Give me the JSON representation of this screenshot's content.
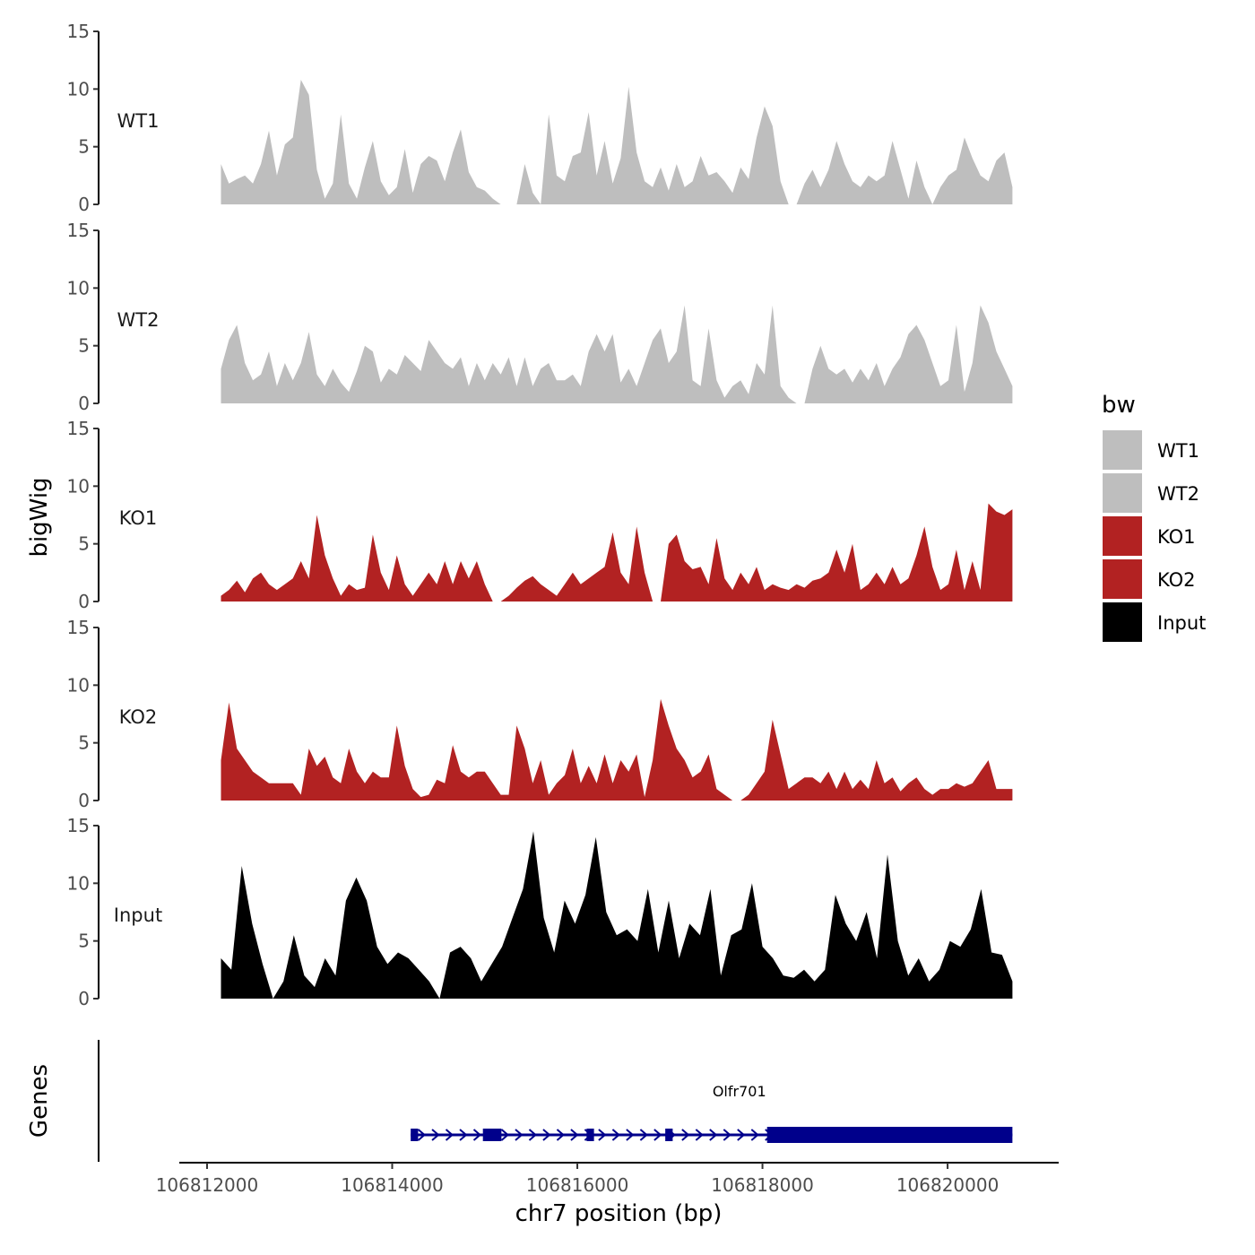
{
  "chart_data": {
    "type": "area",
    "x_axis": {
      "label": "chr7 position (bp)",
      "range": [
        106811700,
        106821200
      ],
      "ticks": [
        106812000,
        106814000,
        106816000,
        106818000,
        106820000
      ],
      "tick_labels": [
        "106812000",
        "106814000",
        "106816000",
        "106818000",
        "106820000"
      ]
    },
    "y_axis": {
      "label": "bigWig",
      "range": [
        0,
        15
      ],
      "ticks": [
        0,
        5,
        10,
        15
      ],
      "tick_labels": [
        "0",
        "5",
        "10",
        "15"
      ]
    },
    "x_span": [
      106812150,
      106820700
    ],
    "tracks": [
      {
        "name": "WT1",
        "color": "#bebebe",
        "values": [
          3.5,
          1.8,
          2.2,
          2.5,
          1.8,
          3.5,
          6.4,
          2.5,
          5.2,
          5.8,
          10.8,
          9.5,
          3.0,
          0.5,
          1.8,
          7.8,
          1.8,
          0.5,
          3.2,
          5.5,
          2.0,
          0.8,
          1.5,
          4.8,
          1.0,
          3.5,
          4.2,
          3.8,
          2.0,
          4.5,
          6.5,
          2.8,
          1.5,
          1.2,
          0.5,
          0,
          0,
          0,
          3.5,
          1.0,
          0,
          7.8,
          2.5,
          2.0,
          4.2,
          4.5,
          8.0,
          2.5,
          5.5,
          1.8,
          4.0,
          10.2,
          4.5,
          2.0,
          1.5,
          3.2,
          1.2,
          3.5,
          1.5,
          2.0,
          4.2,
          2.5,
          2.8,
          2.0,
          1.0,
          3.2,
          2.2,
          5.8,
          8.5,
          6.8,
          2.0,
          0,
          0,
          1.8,
          3.0,
          1.5,
          3.0,
          5.5,
          3.5,
          2.0,
          1.5,
          2.5,
          2.0,
          2.5,
          5.5,
          3.0,
          0.5,
          3.8,
          1.5,
          0,
          1.5,
          2.5,
          3.0,
          5.8,
          4.0,
          2.5,
          2.0,
          3.8,
          4.5,
          1.5
        ]
      },
      {
        "name": "WT2",
        "color": "#bebebe",
        "values": [
          3.0,
          5.5,
          6.8,
          3.5,
          2.0,
          2.5,
          4.5,
          1.5,
          3.5,
          2.0,
          3.5,
          6.2,
          2.5,
          1.5,
          3.0,
          1.8,
          1.0,
          2.8,
          5.0,
          4.5,
          1.8,
          3.0,
          2.5,
          4.2,
          3.5,
          2.8,
          5.5,
          4.5,
          3.5,
          3.0,
          4.0,
          1.5,
          3.5,
          2.0,
          3.5,
          2.5,
          4.0,
          1.5,
          4.0,
          1.5,
          3.0,
          3.5,
          2.0,
          2.0,
          2.5,
          1.5,
          4.5,
          6.0,
          4.5,
          6.0,
          1.8,
          3.0,
          1.5,
          3.5,
          5.5,
          6.5,
          3.5,
          4.5,
          8.5,
          2.0,
          1.5,
          6.5,
          2.0,
          0.5,
          1.5,
          2.0,
          0.8,
          3.5,
          2.5,
          8.5,
          1.5,
          0.5,
          0,
          0,
          3.0,
          5.0,
          3.0,
          2.5,
          3.0,
          1.8,
          3.0,
          2.0,
          3.5,
          1.5,
          3.0,
          4.0,
          6.0,
          6.8,
          5.5,
          3.5,
          1.5,
          2.0,
          6.8,
          1.0,
          3.5,
          8.5,
          7.0,
          4.5,
          3.0,
          1.5
        ]
      },
      {
        "name": "KO1",
        "color": "#b22222",
        "values": [
          0.5,
          1.0,
          1.8,
          0.8,
          2.0,
          2.5,
          1.5,
          1.0,
          1.5,
          2.0,
          3.5,
          2.0,
          7.5,
          4.0,
          2.0,
          0.5,
          1.5,
          1.0,
          1.2,
          5.8,
          2.5,
          1.0,
          4.0,
          1.5,
          0.5,
          1.5,
          2.5,
          1.5,
          3.5,
          1.5,
          3.5,
          2.0,
          3.5,
          1.5,
          0,
          0,
          0.5,
          1.2,
          1.8,
          2.2,
          1.5,
          1.0,
          0.5,
          1.5,
          2.5,
          1.5,
          2.0,
          2.5,
          3.0,
          6.0,
          2.5,
          1.5,
          6.5,
          2.5,
          0,
          0,
          5.0,
          5.8,
          3.5,
          2.8,
          3.0,
          1.5,
          5.5,
          2.0,
          1.0,
          2.5,
          1.5,
          3.0,
          1.0,
          1.5,
          1.2,
          1.0,
          1.5,
          1.2,
          1.8,
          2.0,
          2.5,
          4.5,
          2.5,
          5.0,
          1.0,
          1.5,
          2.5,
          1.5,
          3.0,
          1.5,
          2.0,
          4.0,
          6.5,
          3.0,
          1.0,
          1.5,
          4.5,
          1.0,
          3.5,
          1.0,
          8.5,
          7.8,
          7.5,
          8.0
        ]
      },
      {
        "name": "KO2",
        "color": "#b22222",
        "values": [
          3.5,
          8.5,
          4.5,
          3.5,
          2.5,
          2.0,
          1.5,
          1.5,
          1.5,
          1.5,
          0.5,
          4.5,
          3.0,
          3.8,
          2.0,
          1.5,
          4.5,
          2.5,
          1.5,
          2.5,
          2.0,
          2.0,
          6.5,
          3.0,
          1.0,
          0.3,
          0.5,
          1.8,
          1.5,
          4.8,
          2.5,
          2.0,
          2.5,
          2.5,
          1.5,
          0.5,
          0.5,
          6.5,
          4.5,
          1.5,
          3.5,
          0.5,
          1.5,
          2.2,
          4.5,
          1.5,
          3.0,
          1.5,
          4.0,
          1.5,
          3.5,
          2.5,
          4.0,
          0.3,
          3.5,
          8.8,
          6.5,
          4.5,
          3.5,
          2.0,
          2.5,
          4.0,
          1.0,
          0.5,
          0,
          0,
          0.5,
          1.5,
          2.5,
          7.0,
          4.0,
          1.0,
          1.5,
          2.0,
          2.0,
          1.5,
          2.5,
          1.0,
          2.5,
          1.0,
          1.8,
          1.0,
          3.5,
          1.5,
          2.0,
          0.8,
          1.5,
          2.0,
          1.0,
          0.5,
          1.0,
          1.0,
          1.5,
          1.2,
          1.5,
          2.5,
          3.5,
          1.0,
          1.0,
          1.0
        ]
      },
      {
        "name": "Input",
        "color": "#000000",
        "values": [
          3.5,
          2.5,
          11.5,
          6.5,
          3.0,
          0,
          1.5,
          5.5,
          2.0,
          1.0,
          3.5,
          2.0,
          8.5,
          10.5,
          8.5,
          4.5,
          3.0,
          4.0,
          3.5,
          2.5,
          1.5,
          0,
          4.0,
          4.5,
          3.5,
          1.5,
          3.0,
          4.5,
          7.0,
          9.5,
          14.5,
          7.0,
          4.0,
          8.5,
          6.5,
          9.0,
          14.0,
          7.5,
          5.5,
          6.0,
          5.0,
          9.5,
          4.0,
          8.5,
          3.5,
          6.5,
          5.5,
          9.5,
          2.0,
          5.5,
          6.0,
          10.0,
          4.5,
          3.5,
          2.0,
          1.8,
          2.5,
          1.5,
          2.5,
          9.0,
          6.5,
          5.0,
          7.5,
          3.5,
          12.5,
          5.0,
          2.0,
          3.5,
          1.5,
          2.5,
          5.0,
          4.5,
          6.0,
          9.5,
          4.0,
          3.8,
          1.5
        ]
      }
    ],
    "legend": {
      "title": "bw",
      "entries": [
        {
          "label": "WT1",
          "color": "#bebebe"
        },
        {
          "label": "WT2",
          "color": "#bebebe"
        },
        {
          "label": "KO1",
          "color": "#b22222"
        },
        {
          "label": "KO2",
          "color": "#b22222"
        },
        {
          "label": "Input",
          "color": "#000000"
        }
      ],
      "position": "right"
    },
    "genes_track": {
      "label": "Genes",
      "color": "#00008b",
      "gene_name": "Olfr701",
      "start": 106814200,
      "end": 106820700,
      "strand": "+",
      "exons": [
        [
          106814200,
          106814280
        ],
        [
          106814980,
          106815180
        ],
        [
          106816100,
          106816180
        ],
        [
          106816950,
          106817030
        ],
        [
          106818050,
          106820700
        ]
      ],
      "thick_exon": [
        106818050,
        106820700
      ]
    }
  }
}
